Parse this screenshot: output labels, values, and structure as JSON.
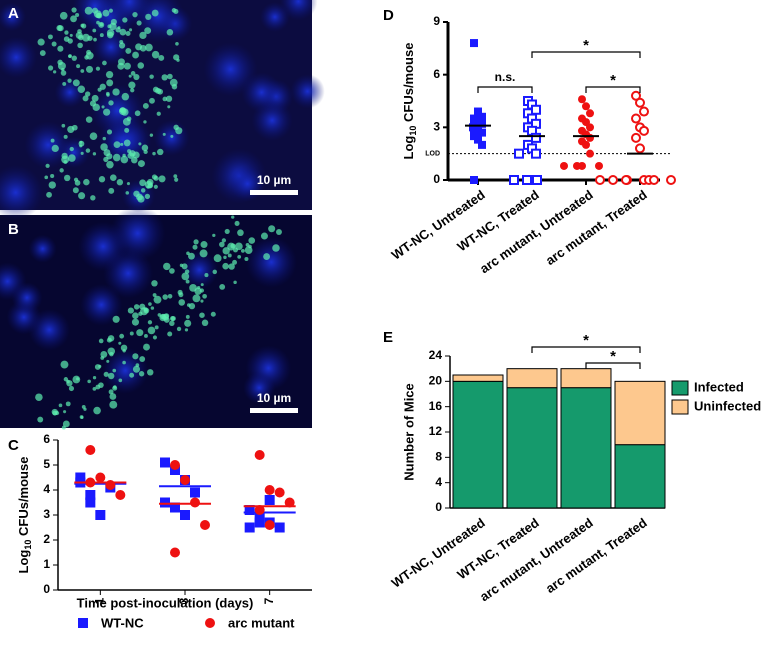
{
  "images": [
    {
      "label": "A",
      "scale_bar": "10 µm"
    },
    {
      "label": "B",
      "scale_bar": "10 µm"
    }
  ],
  "chart_data": [
    {
      "type": "strip",
      "label": "C",
      "ylabel": {
        "base": "Log",
        "sub": "10",
        "rest": " CFUs/mouse"
      },
      "xlabel": "Time post-inoculation (days)",
      "categories": [
        "1",
        "3",
        "7"
      ],
      "ylim": [
        0,
        6
      ],
      "yticks": [
        0,
        1,
        2,
        3,
        4,
        5,
        6
      ],
      "series": [
        {
          "name": "WT-NC",
          "color": "#1a1aff",
          "marker": "square",
          "values": [
            [
              4.3,
              3.5,
              3.0,
              4.1,
              4.5,
              3.8
            ],
            [
              5.1,
              4.8,
              4.4,
              3.9,
              3.5,
              3.3,
              3.0
            ],
            [
              3.2,
              2.9,
              2.7,
              2.5,
              2.5,
              2.7,
              3.6
            ]
          ],
          "means": [
            4.25,
            4.15,
            3.1
          ]
        },
        {
          "name": "arc mutant",
          "color": "#ee1111",
          "marker": "circle",
          "values": [
            [
              5.6,
              4.5,
              4.2,
              3.8,
              4.3
            ],
            [
              5.0,
              4.4,
              3.5,
              2.6,
              1.5
            ],
            [
              5.4,
              4.0,
              3.9,
              3.5,
              3.2,
              2.6
            ]
          ],
          "means": [
            4.3,
            3.45,
            3.35
          ]
        }
      ]
    },
    {
      "type": "strip_groups",
      "label": "D",
      "ylabel": {
        "base": "Log",
        "sub": "10",
        "rest": " CFUs/mouse"
      },
      "categories": [
        "WT-NC, Untreated",
        "WT-NC, Treated",
        "arc mutant, Untreated",
        "arc mutant, Treated"
      ],
      "ylim": [
        0,
        9
      ],
      "yticks": [
        0,
        3,
        6,
        9
      ],
      "lod": {
        "value": 1.5,
        "label": "LOD"
      },
      "colors": [
        "#1a1aff",
        "#1a1aff",
        "#ee1111",
        "#ee1111"
      ],
      "markers": [
        "square",
        "square",
        "circle",
        "circle"
      ],
      "filled": [
        true,
        false,
        true,
        false
      ],
      "values": [
        [
          7.8,
          3.9,
          3.6,
          3.5,
          3.3,
          3.2,
          3.1,
          3.0,
          3.0,
          2.9,
          2.8,
          2.7,
          2.5,
          2.3,
          2.0,
          0
        ],
        [
          4.5,
          4.3,
          4.0,
          3.8,
          3.5,
          3.2,
          3.0,
          2.8,
          2.4,
          2.0,
          1.8,
          1.5,
          1.5,
          0,
          0,
          0,
          0
        ],
        [
          4.6,
          4.2,
          3.8,
          3.5,
          3.3,
          3.0,
          2.8,
          2.6,
          2.4,
          2.2,
          2.0,
          1.5,
          0.8,
          0.8,
          0.8,
          0.8
        ],
        [
          4.8,
          4.4,
          3.9,
          3.5,
          3.0,
          2.8,
          2.4,
          1.8,
          0,
          0,
          0,
          0,
          0,
          0,
          0,
          0
        ]
      ],
      "means": [
        3.1,
        2.5,
        2.5,
        1.5
      ],
      "annotations": [
        {
          "text": "n.s.",
          "from": 0,
          "to": 1
        },
        {
          "text": "*",
          "from": 1,
          "to": 3
        },
        {
          "text": "*",
          "from": 2,
          "to": 3
        }
      ]
    },
    {
      "type": "stacked_bar",
      "label": "E",
      "ylabel": "Number of Mice",
      "categories": [
        "WT-NC, Untreated",
        "WT-NC, Treated",
        "arc mutant, Untreated",
        "arc mutant, Treated"
      ],
      "ylim": [
        0,
        24
      ],
      "yticks": [
        0,
        4,
        8,
        12,
        16,
        20,
        24
      ],
      "series": [
        {
          "name": "Infected",
          "color": "#159a6c",
          "values": [
            20,
            19,
            19,
            10
          ]
        },
        {
          "name": "Uninfected",
          "color": "#fdc88e",
          "values": [
            1,
            3,
            3,
            10
          ]
        }
      ],
      "annotations": [
        {
          "text": "*",
          "from": 1,
          "to": 3
        },
        {
          "text": "*",
          "from": 2,
          "to": 3
        }
      ]
    }
  ]
}
